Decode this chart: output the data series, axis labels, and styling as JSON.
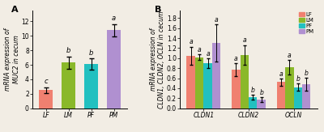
{
  "panel_A": {
    "categories": [
      "LF",
      "LM",
      "PF",
      "PM"
    ],
    "values": [
      2.5,
      6.3,
      6.1,
      10.8
    ],
    "errors": [
      0.4,
      0.85,
      0.75,
      0.85
    ],
    "letters": [
      "c",
      "b",
      "b",
      "a"
    ],
    "colors": [
      "#f08070",
      "#8ab82a",
      "#22c0c0",
      "#b090d0"
    ],
    "ylabel": "mRNA expression of\nMUC2 in cecum",
    "ylim": [
      0,
      13.5
    ],
    "yticks": [
      0,
      2,
      4,
      6,
      8,
      10,
      12
    ],
    "panel_label": "A"
  },
  "panel_B": {
    "groups": [
      "CLDN1",
      "CLDN2",
      "OCLN"
    ],
    "series": [
      "LF",
      "LM",
      "PF",
      "PM"
    ],
    "values": [
      [
        1.05,
        1.02,
        0.9,
        1.3
      ],
      [
        0.77,
        1.06,
        0.22,
        0.17
      ],
      [
        0.52,
        0.82,
        0.42,
        0.48
      ]
    ],
    "errors": [
      [
        0.18,
        0.05,
        0.09,
        0.37
      ],
      [
        0.13,
        0.2,
        0.05,
        0.05
      ],
      [
        0.07,
        0.14,
        0.07,
        0.13
      ]
    ],
    "letters": [
      [
        "a",
        "a",
        "a",
        "a"
      ],
      [
        "a",
        "a",
        "b",
        "b"
      ],
      [
        "a",
        "a",
        "b",
        "b"
      ]
    ],
    "colors": [
      "#f08070",
      "#8ab82a",
      "#22c0c0",
      "#b090d0"
    ],
    "ylabel": "mRNA expression of\nCLDN1, CLDN2, OCLN in cecum",
    "ylim": [
      0,
      1.95
    ],
    "yticks": [
      0.0,
      0.2,
      0.4,
      0.6,
      0.8,
      1.0,
      1.2,
      1.4,
      1.6,
      1.8
    ],
    "panel_label": "B",
    "legend_labels": [
      "LF",
      "LM",
      "PF",
      "PM"
    ]
  },
  "background_color": "#f2ede4",
  "fontsize_label": 5.5,
  "fontsize_tick": 5.5,
  "fontsize_letter": 6,
  "fontsize_panel": 8
}
